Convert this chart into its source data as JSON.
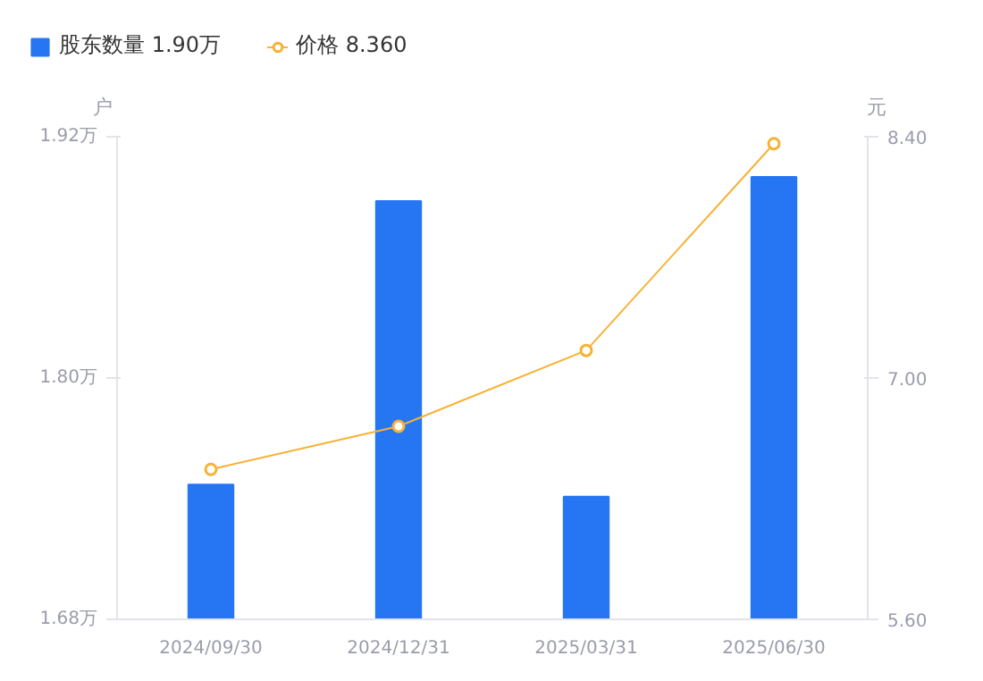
{
  "chart_data": {
    "type": "bar",
    "categories": [
      "2024/09/30",
      "2024/12/31",
      "2025/03/31",
      "2025/06/30"
    ],
    "ylabel": "户",
    "y2label": "元",
    "series": [
      {
        "name": "股东数量 1.90万",
        "color": "#2676f4",
        "values": [
          1.747,
          1.888,
          1.741,
          1.9
        ]
      },
      {
        "name": "价格 8.360",
        "type": "line",
        "axis": "y2",
        "color": "#f8b133",
        "marker": "circle",
        "values": [
          6.47,
          6.72,
          7.16,
          8.36
        ]
      }
    ],
    "ylim": [
      1.68,
      1.92
    ],
    "yticks": [
      {
        "value": 1.68,
        "label": "1.68万"
      },
      {
        "value": 1.8,
        "label": "1.80万"
      },
      {
        "value": 1.92,
        "label": "1.92万"
      }
    ],
    "y2lim": [
      5.6,
      8.4
    ],
    "y2ticks": [
      {
        "value": 5.6,
        "label": "5.60"
      },
      {
        "value": 7.0,
        "label": "7.00"
      },
      {
        "value": 8.4,
        "label": "8.40"
      }
    ],
    "grid": false,
    "legend": "top left"
  }
}
